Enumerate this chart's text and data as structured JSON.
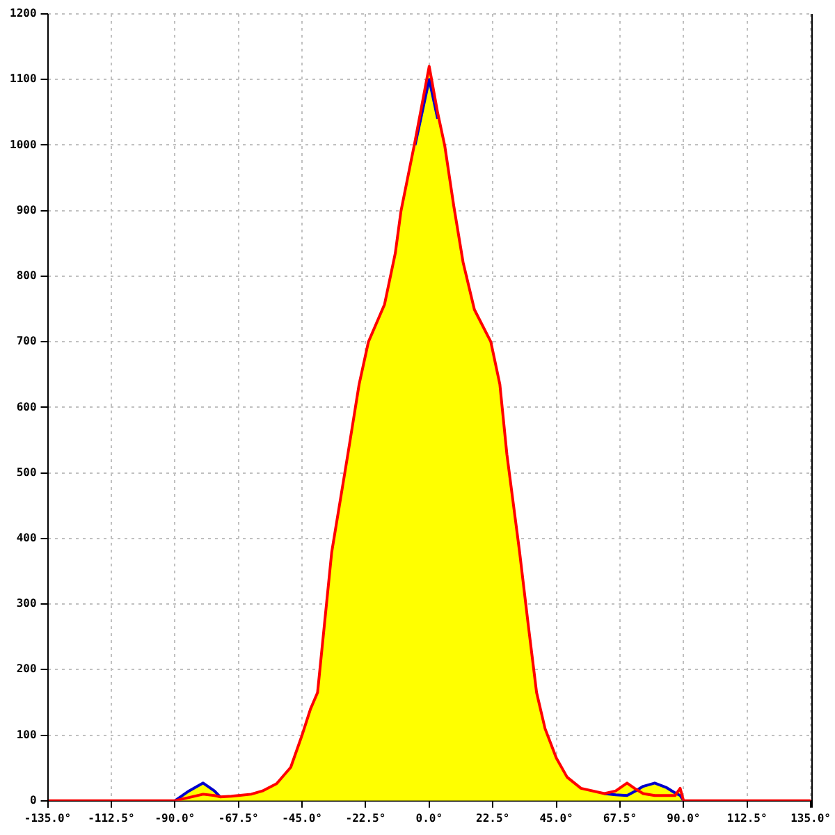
{
  "chart_data": {
    "type": "line",
    "xlim": [
      -135,
      135
    ],
    "xticks": [
      {
        "value": -135,
        "label": "-135.0°"
      },
      {
        "value": -112.5,
        "label": "-112.5°"
      },
      {
        "value": -90,
        "label": "-90.0°"
      },
      {
        "value": -67.5,
        "label": "-67.5°"
      },
      {
        "value": -45,
        "label": "-45.0°"
      },
      {
        "value": -22.5,
        "label": "-22.5°"
      },
      {
        "value": 0,
        "label": "0.0°"
      },
      {
        "value": 22.5,
        "label": "22.5°"
      },
      {
        "value": 45,
        "label": "45.0°"
      },
      {
        "value": 67.5,
        "label": "67.5°"
      },
      {
        "value": 90,
        "label": "90.0°"
      },
      {
        "value": 112.5,
        "label": "112.5°"
      },
      {
        "value": 135,
        "label": "135.0°"
      }
    ],
    "ylim": [
      0,
      1200
    ],
    "yticks": [
      0,
      100,
      200,
      300,
      400,
      500,
      600,
      700,
      800,
      900,
      1000,
      1100,
      1200
    ],
    "grid": true,
    "legend": false,
    "marker": "none",
    "line_style": "solid",
    "x": [
      -90,
      -85,
      -80,
      -76,
      -74,
      -70,
      -67.5,
      -63,
      -59,
      -54,
      -49,
      -45,
      -42,
      -39.5,
      -34.5,
      -28.8,
      -24.8,
      -21.5,
      -15.8,
      -12,
      -10,
      -5,
      0,
      3,
      5.5,
      8.7,
      12,
      16,
      21.8,
      25,
      27.5,
      32,
      35,
      38,
      41,
      45,
      48.8,
      53.7,
      62,
      66,
      70,
      73,
      75.7,
      79.8,
      84,
      87,
      88.8,
      90
    ],
    "series": [
      {
        "type": "area",
        "color": "#ffff00",
        "values": [
          0,
          15,
          27,
          15,
          6,
          7,
          8,
          10,
          15,
          26,
          51,
          100,
          140,
          165,
          379,
          528,
          635,
          700,
          757,
          835,
          899,
          1006,
          1120,
          1049,
          999,
          907,
          821,
          749,
          700,
          635,
          528,
          379,
          270,
          165,
          110,
          65,
          36,
          19,
          11,
          15,
          27,
          18,
          22,
          27,
          20,
          12,
          19,
          0
        ]
      },
      {
        "type": "line",
        "color": "#0000cc",
        "values": [
          0,
          15,
          27,
          15,
          6,
          null,
          null,
          null,
          null,
          null,
          null,
          null,
          null,
          null,
          null,
          null,
          null,
          null,
          null,
          null,
          null,
          1000,
          1100,
          1040,
          null,
          null,
          null,
          null,
          null,
          null,
          null,
          null,
          null,
          null,
          null,
          null,
          null,
          null,
          11,
          9,
          8,
          15,
          22,
          27,
          20,
          12,
          8,
          0
        ]
      },
      {
        "type": "line",
        "color": "#ff0000",
        "x": [
          -135,
          -90,
          -85,
          -80,
          -76,
          -74,
          -70,
          -67.5,
          -63,
          -59,
          -54,
          -49,
          -45,
          -42,
          -39.5,
          -34.5,
          -28.8,
          -24.8,
          -21.5,
          -15.8,
          -12,
          -10,
          -5,
          0,
          3,
          5.5,
          8.7,
          12,
          16,
          21.8,
          25,
          27.5,
          32,
          35,
          38,
          41,
          45,
          48.8,
          53.7,
          62,
          66,
          70,
          73,
          75.7,
          79.8,
          84,
          87,
          88.8,
          90,
          135
        ],
        "values": [
          0,
          0,
          5,
          10,
          8,
          6,
          7,
          8,
          10,
          15,
          26,
          51,
          100,
          140,
          165,
          379,
          528,
          635,
          700,
          757,
          835,
          899,
          1006,
          1120,
          1049,
          999,
          907,
          821,
          749,
          700,
          635,
          528,
          379,
          270,
          165,
          110,
          65,
          36,
          19,
          11,
          15,
          27,
          18,
          11,
          8,
          8,
          8,
          19,
          0,
          0
        ]
      }
    ]
  }
}
